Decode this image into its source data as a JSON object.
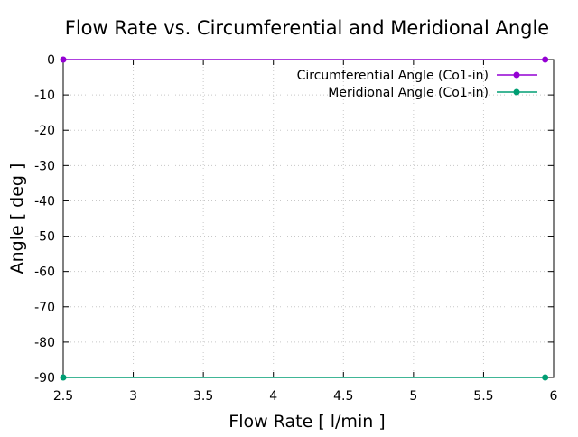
{
  "chart_data": {
    "type": "line",
    "title": "Flow Rate vs. Circumferential and Meridional Angle",
    "xlabel": "Flow Rate [ l/min ]",
    "ylabel": "Angle [ deg ]",
    "xlim": [
      2.5,
      6
    ],
    "ylim": [
      -90,
      0
    ],
    "xticks": [
      "2.5",
      "3",
      "3.5",
      "4",
      "4.5",
      "5",
      "5.5",
      "6"
    ],
    "xtick_values": [
      2.5,
      3,
      3.5,
      4,
      4.5,
      5,
      5.5,
      6
    ],
    "yticks": [
      "0",
      "-10",
      "-20",
      "-30",
      "-40",
      "-50",
      "-60",
      "-70",
      "-80",
      "-90"
    ],
    "ytick_values": [
      0,
      -10,
      -20,
      -30,
      -40,
      -50,
      -60,
      -70,
      -80,
      -90
    ],
    "grid": true,
    "legend_position": "top-right",
    "series": [
      {
        "name": "Circumferential Angle (Co1-in)",
        "color": "#9400d3",
        "x": [
          2.5,
          5.94
        ],
        "y": [
          0,
          0
        ]
      },
      {
        "name": "Meridional Angle (Co1-in)",
        "color": "#009e73",
        "x": [
          2.5,
          5.94
        ],
        "y": [
          -90,
          -90
        ]
      }
    ]
  }
}
